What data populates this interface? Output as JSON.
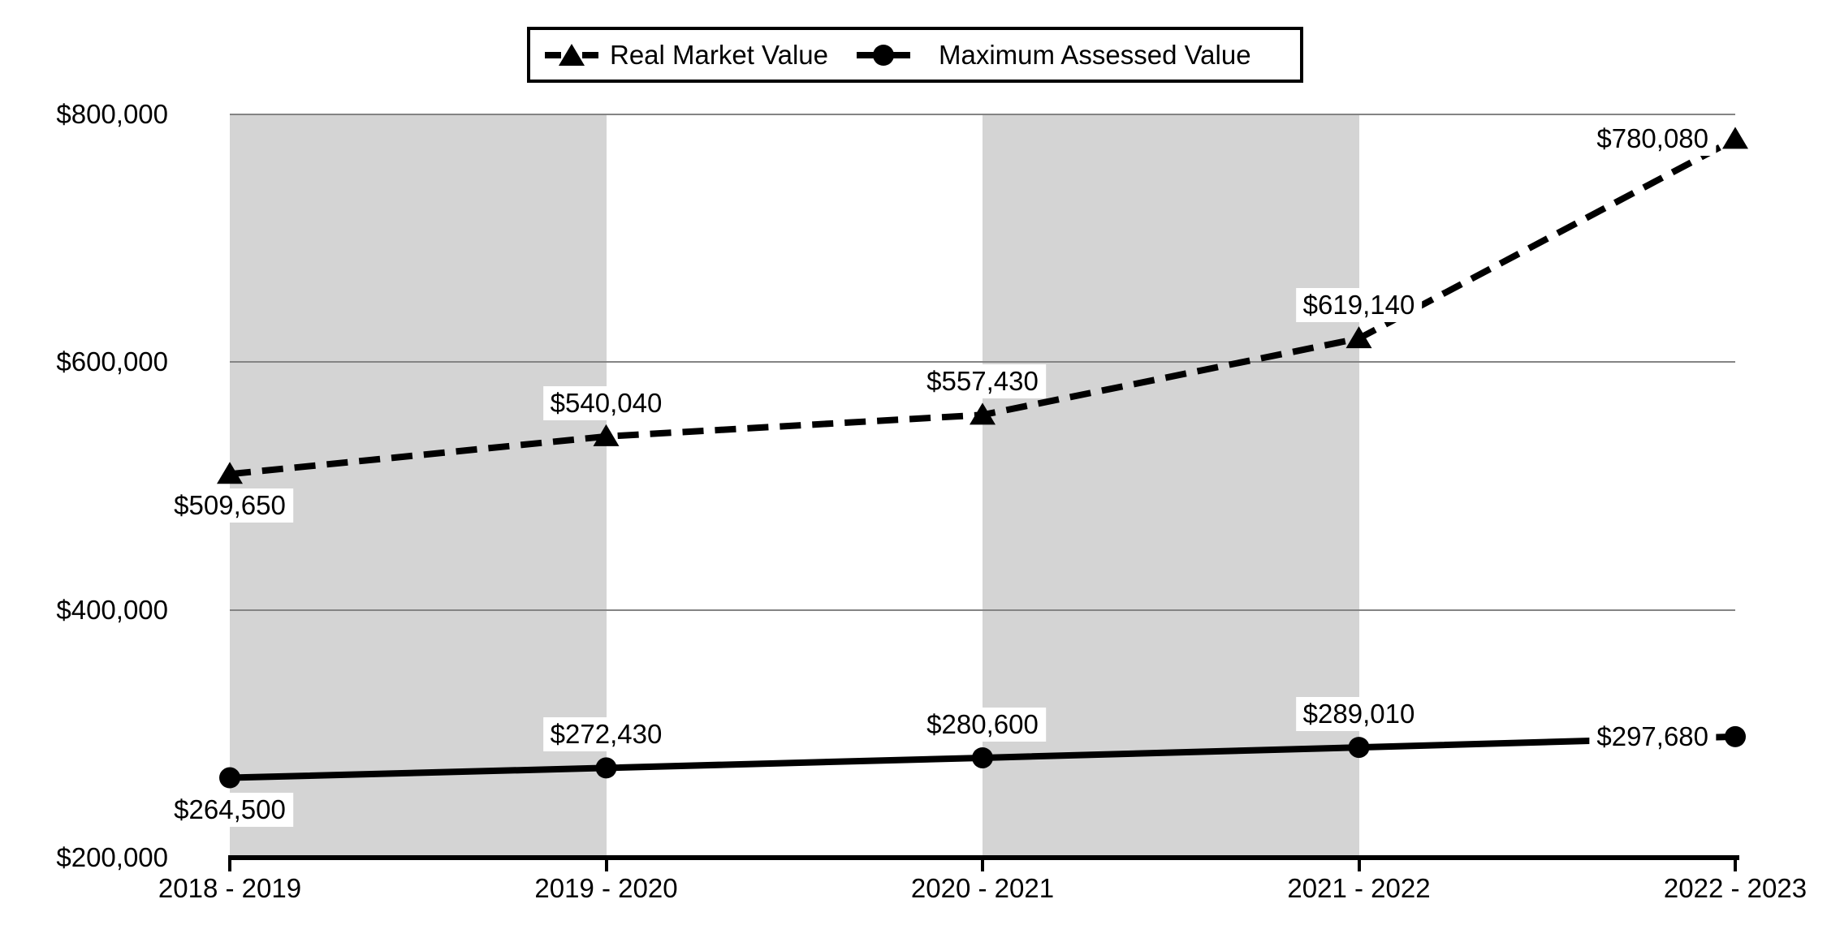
{
  "chart_data": {
    "type": "line",
    "title": "",
    "categories": [
      "2018 - 2019",
      "2019 - 2020",
      "2020 - 2021",
      "2021 - 2022",
      "2022 - 2023"
    ],
    "series": [
      {
        "name": "Real Market Value",
        "line_style": "dashed",
        "marker": "triangle",
        "color": "#000000",
        "values": [
          509650,
          540040,
          557430,
          619140,
          780080
        ],
        "data_labels": [
          "$509,650",
          "$540,040",
          "$557,430",
          "$619,140",
          "$780,080"
        ],
        "label_placements": [
          "below",
          "above",
          "above",
          "above",
          "left"
        ]
      },
      {
        "name": "Maximum Assessed Value",
        "line_style": "solid",
        "marker": "circle",
        "color": "#000000",
        "values": [
          264500,
          272430,
          280600,
          289010,
          297680
        ],
        "data_labels": [
          "$264,500",
          "$272,430",
          "$280,600",
          "$289,010",
          "$297,680"
        ],
        "label_placements": [
          "below",
          "above",
          "above",
          "above",
          "left"
        ]
      }
    ],
    "y_axis": {
      "min": 200000,
      "max": 800000,
      "ticks": [
        {
          "label": "$800,000",
          "value": 800000
        },
        {
          "label": "$600,000",
          "value": 600000
        },
        {
          "label": "$400,000",
          "value": 400000
        },
        {
          "label": "$200,000",
          "value": 200000
        }
      ]
    },
    "grid": true,
    "legend_position": "top-center",
    "background_bands": {
      "color": "#d4d4d4",
      "pattern": "alternating",
      "shaded_category_spans": [
        [
          0,
          1
        ],
        [
          2,
          3
        ]
      ]
    }
  },
  "colors": {
    "background": "#ffffff",
    "plot_band": "#d4d4d4",
    "gridline": "#848484",
    "axis": "#000000",
    "series": "#000000",
    "data_label_background": "#ffffff"
  }
}
